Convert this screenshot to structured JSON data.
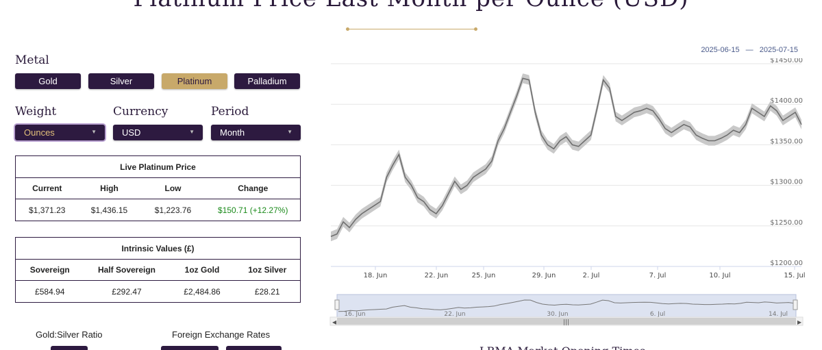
{
  "page": {
    "title": "Platinum Price Last Month per Ounce (USD)",
    "bottom_heading": "LBMA Market Opening Times"
  },
  "controls": {
    "metal_label": "Metal",
    "metals": [
      "Gold",
      "Silver",
      "Platinum",
      "Palladium"
    ],
    "selected_metal": "Platinum",
    "weight_label": "Weight",
    "weight_value": "Ounces",
    "currency_label": "Currency",
    "currency_value": "USD",
    "period_label": "Period",
    "period_value": "Month"
  },
  "live_price": {
    "caption": "Live Platinum Price",
    "headers": [
      "Current",
      "High",
      "Low",
      "Change"
    ],
    "values": [
      "$1,371.23",
      "$1,436.15",
      "$1,223.76",
      "$150.71 (+12.27%)"
    ]
  },
  "intrinsic": {
    "caption": "Intrinsic Values (£)",
    "headers": [
      "Sovereign",
      "Half Sovereign",
      "1oz Gold",
      "1oz Silver"
    ],
    "values": [
      "£584.94",
      "£292.47",
      "£2,484.86",
      "£28.21"
    ]
  },
  "bottom": {
    "ratio_label": "Gold:Silver Ratio",
    "fx_label": "Foreign Exchange Rates"
  },
  "colors": {
    "accent": "#c8a96a",
    "button_bg": "#2d1a40",
    "positive": "#1a8a1a"
  },
  "chart_data": {
    "type": "line",
    "range_start": "2025-06-15",
    "range_end": "2025-07-15",
    "range_separator": "—",
    "x_ticks": [
      "18. Jun",
      "22. Jun",
      "25. Jun",
      "29. Jun",
      "2. Jul",
      "7. Jul",
      "10. Jul",
      "15. Jul"
    ],
    "y_ticks": [
      "$1200.00",
      "$1250.00",
      "$1300.00",
      "$1350.00",
      "$1400.00",
      "$1450.00"
    ],
    "ylim": [
      1200,
      1450
    ],
    "y_tick_values": [
      1200,
      1250,
      1300,
      1350,
      1400,
      1450
    ],
    "grid": true,
    "series": [
      {
        "values": [
          1237,
          1240,
          1255,
          1248,
          1258,
          1265,
          1270,
          1275,
          1280,
          1310,
          1325,
          1338,
          1310,
          1300,
          1285,
          1280,
          1270,
          1265,
          1275,
          1290,
          1305,
          1295,
          1300,
          1310,
          1315,
          1320,
          1330,
          1355,
          1370,
          1390,
          1410,
          1432,
          1430,
          1390,
          1362,
          1350,
          1345,
          1355,
          1360,
          1350,
          1348,
          1355,
          1362,
          1395,
          1430,
          1420,
          1385,
          1380,
          1385,
          1390,
          1392,
          1395,
          1392,
          1382,
          1370,
          1365,
          1370,
          1375,
          1372,
          1362,
          1358,
          1355,
          1355,
          1358,
          1362,
          1368,
          1365,
          1375,
          1395,
          1390,
          1385,
          1398,
          1392,
          1380,
          1385,
          1390,
          1375
        ]
      }
    ],
    "band_width": 6,
    "navigator": {
      "ticks": [
        "16. Jun",
        "22. Jun",
        "30. Jun",
        "6. Jul",
        "14. Jul"
      ]
    }
  }
}
